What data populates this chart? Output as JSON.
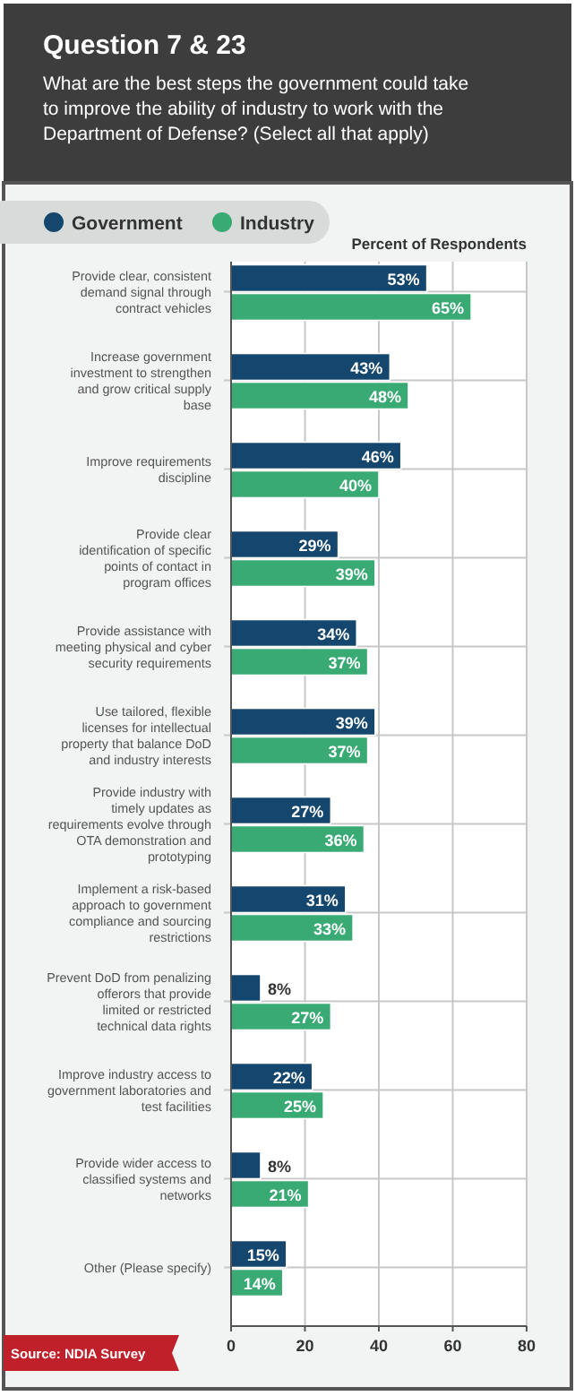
{
  "chart_data": {
    "type": "bar",
    "orientation": "horizontal",
    "title": "Question 7 & 23",
    "subtitle": "What are the best steps the government could take to improve the ability of industry to work with the Department of Defense? (Select all that apply)",
    "xlabel": "Percent of Respondents",
    "categories": [
      "Provide clear, consistent demand signal through contract vehicles",
      "Increase government investment to strengthen and grow critical supply base",
      "Improve requirements discipline",
      "Provide clear identification of specific points of contact in program offices",
      "Provide assistance with meeting physical and cyber security requirements",
      "Use tailored, flexible licenses for intellectual property that balance DoD and industry interests",
      "Provide industry with timely updates as requirements evolve through OTA demonstration and prototyping",
      "Implement a risk-based approach to government compliance and sourcing restrictions",
      "Prevent DoD from penalizing offerors that provide limited or restricted technical data rights",
      "Improve industry access to government laboratories and test facilities",
      "Provide wider access to classified systems and networks",
      "Other (Please specify)"
    ],
    "series": [
      {
        "name": "Government",
        "color": "#15476e",
        "values": [
          53,
          43,
          46,
          29,
          34,
          39,
          27,
          31,
          8,
          22,
          8,
          15
        ],
        "value_labels": [
          "53%",
          "43%",
          "46%",
          "29%",
          "34%",
          "39%",
          "27%",
          "31%",
          "8%",
          "22%",
          "8%",
          "15%"
        ]
      },
      {
        "name": "Industry",
        "color": "#3aaa74",
        "values": [
          65,
          48,
          40,
          39,
          37,
          37,
          36,
          33,
          27,
          25,
          21,
          14
        ],
        "value_labels": [
          "65%",
          "48%",
          "40%",
          "39%",
          "37%",
          "37%",
          "36%",
          "33%",
          "27%",
          "25%",
          "21%",
          "14%"
        ]
      }
    ],
    "xlim": [
      0,
      80
    ],
    "xticks": [
      0,
      20,
      40,
      60,
      80
    ],
    "grid": true,
    "legend": "top left",
    "annotations": [
      "Source: NDIA Survey"
    ]
  }
}
